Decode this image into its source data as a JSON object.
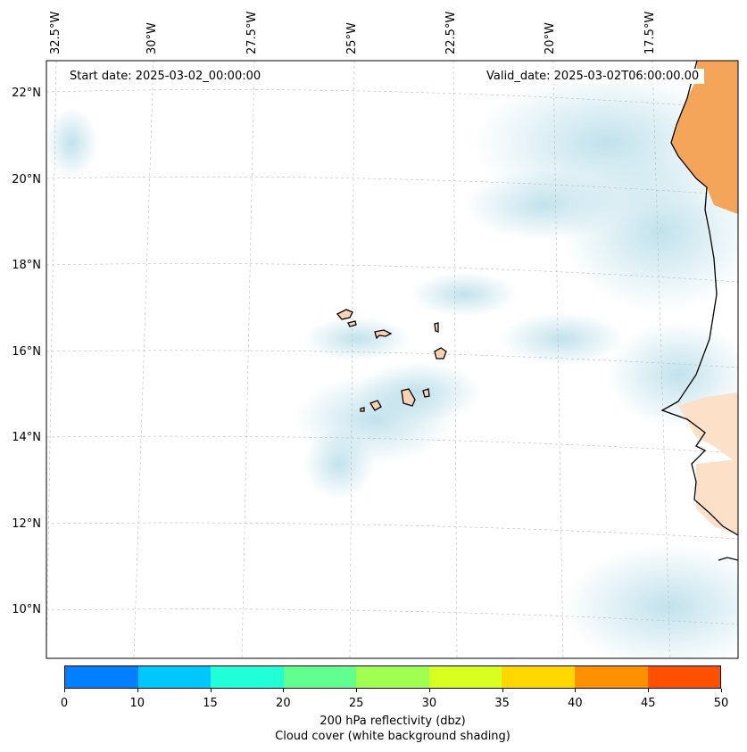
{
  "map": {
    "start_date": "Start date: 2025-03-02_00:00:00",
    "valid_date": "Valid_date: 2025-03-02T06:00:00.00",
    "lon_labels": [
      "32.5°W",
      "30°W",
      "27.5°W",
      "25°W",
      "22.5°W",
      "20°W",
      "17.5°W"
    ],
    "lat_labels": [
      "22°N",
      "20°N",
      "18°N",
      "16°N",
      "14°N",
      "12°N",
      "10°N"
    ],
    "colors": {
      "land_high": "#f4a55a",
      "land_low": "#fde0c8",
      "cloud": "#add8e6",
      "grid": "#bbbbbb"
    }
  },
  "colorbar": {
    "ticks": [
      "0",
      "10",
      "15",
      "20",
      "25",
      "30",
      "35",
      "40",
      "45",
      "50"
    ],
    "colors": [
      "#0080ff",
      "#00c8ff",
      "#20ffd8",
      "#60ff90",
      "#a0ff50",
      "#d8ff20",
      "#ffd800",
      "#ff9000",
      "#ff5000"
    ],
    "label_line1": "200 hPa reflectivity (dbz)",
    "label_line2": "Cloud cover (white background shading)"
  }
}
